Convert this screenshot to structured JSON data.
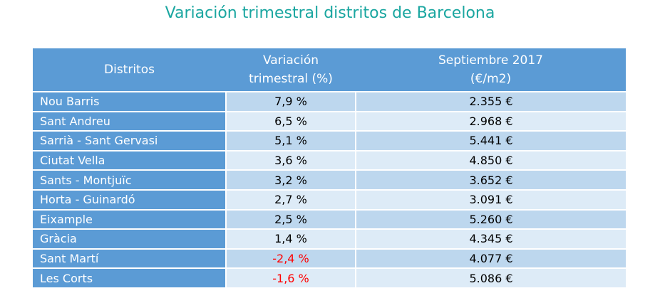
{
  "title": "Variación trimestral distritos de Barcelona",
  "colors": {
    "header": "#5B9BD5",
    "row_odd": "#BDD7EE",
    "row_even": "#DDEBF7",
    "negative": "#FF0000",
    "title": "#1AA6A0"
  },
  "headers": [
    "Distritos",
    "Variación trimestral (%)",
    "Septiembre 2017 (€/m2)"
  ],
  "rows": [
    {
      "district": "Nou Barris",
      "variation": "7,9 %",
      "price": "2.355 €"
    },
    {
      "district": "Sant Andreu",
      "variation": "6,5 %",
      "price": "2.968 €"
    },
    {
      "district": "Sarrià - Sant Gervasi",
      "variation": "5,1 %",
      "price": "5.441 €"
    },
    {
      "district": "Ciutat Vella",
      "variation": "3,6 %",
      "price": "4.850 €"
    },
    {
      "district": "Sants - Montjuïc",
      "variation": "3,2 %",
      "price": "3.652 €"
    },
    {
      "district": "Horta - Guinardó",
      "variation": "2,7 %",
      "price": "3.091 €"
    },
    {
      "district": "Eixample",
      "variation": "2,5 %",
      "price": "5.260 €"
    },
    {
      "district": "Gràcia",
      "variation": "1,4 %",
      "price": "4.345 €"
    },
    {
      "district": "Sant Martí",
      "variation": "-2,4 %",
      "price": "4.077 €"
    },
    {
      "district": "Les Corts",
      "variation": "-1,6 %",
      "price": "5.086 €"
    }
  ]
}
